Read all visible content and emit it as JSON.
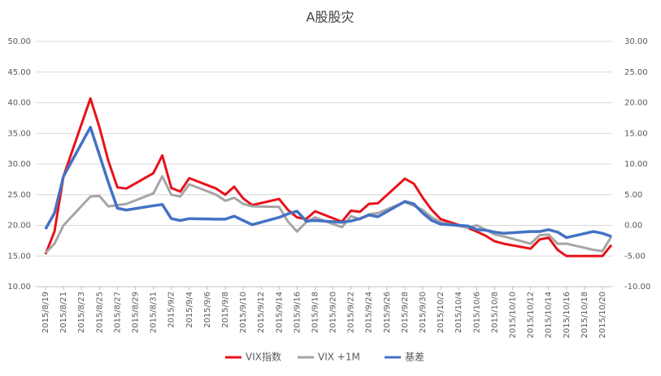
{
  "chart_data": {
    "type": "line",
    "title": "A股股灾",
    "x": [
      "2015/8/19",
      "2015/8/20",
      "2015/8/21",
      "2015/8/24",
      "2015/8/25",
      "2015/8/26",
      "2015/8/27",
      "2015/8/28",
      "2015/8/31",
      "2015/9/1",
      "2015/9/2",
      "2015/9/3",
      "2015/9/4",
      "2015/9/7",
      "2015/9/8",
      "2015/9/9",
      "2015/9/10",
      "2015/9/11",
      "2015/9/14",
      "2015/9/15",
      "2015/9/16",
      "2015/9/17",
      "2015/9/18",
      "2015/9/21",
      "2015/9/22",
      "2015/9/23",
      "2015/9/24",
      "2015/9/25",
      "2015/9/28",
      "2015/9/29",
      "2015/9/30",
      "2015/10/1",
      "2015/10/2",
      "2015/10/5",
      "2015/10/6",
      "2015/10/7",
      "2015/10/8",
      "2015/10/9",
      "2015/10/12",
      "2015/10/13",
      "2015/10/14",
      "2015/10/15",
      "2015/10/16",
      "2015/10/19",
      "2015/10/20",
      "2015/10/21"
    ],
    "xticks": [
      "2015/8/19",
      "2015/8/21",
      "2015/8/23",
      "2015/8/25",
      "2015/8/27",
      "2015/8/29",
      "2015/8/31",
      "2015/9/2",
      "2015/9/4",
      "2015/9/6",
      "2015/9/8",
      "2015/9/10",
      "2015/9/12",
      "2015/9/14",
      "2015/9/16",
      "2015/9/18",
      "2015/9/20",
      "2015/9/22",
      "2015/9/24",
      "2015/9/26",
      "2015/9/28",
      "2015/9/30",
      "2015/10/2",
      "2015/10/4",
      "2015/10/6",
      "2015/10/8",
      "2015/10/10",
      "2015/10/12",
      "2015/10/14",
      "2015/10/16",
      "2015/10/18",
      "2015/10/20"
    ],
    "series": [
      {
        "name": "VIX指数",
        "color": "#e8111a",
        "values": [
          15.3,
          19,
          28,
          40.7,
          36,
          30.5,
          26.2,
          26,
          28.5,
          31.4,
          26.1,
          25.5,
          27.7,
          26.0,
          25.0,
          26.3,
          24.4,
          23.3,
          24.3,
          22.5,
          21.3,
          21.0,
          22.3,
          20.6,
          22.4,
          22.2,
          23.5,
          23.6,
          27.6,
          26.8,
          24.5,
          22.5,
          21.0,
          19.6,
          19.0,
          18.3,
          17.4,
          17.0,
          16.2,
          17.7,
          18.0,
          16.0,
          15.0,
          15.0,
          15.0,
          16.8
        ]
      },
      {
        "name": "VIX +1M",
        "color": "#a5a5a5",
        "values": [
          15.5,
          17,
          20,
          24.7,
          24.8,
          23.1,
          23.3,
          23.5,
          25.2,
          28.0,
          25.0,
          24.7,
          26.7,
          25.0,
          24.0,
          24.5,
          23.5,
          23.1,
          23.0,
          20.6,
          19.0,
          20.5,
          21.3,
          19.7,
          21.5,
          21.0,
          21.8,
          22.0,
          23.8,
          23.2,
          22.5,
          21.3,
          20.5,
          19.6,
          20.0,
          19.3,
          18.5,
          18.2,
          17.0,
          18.4,
          18.5,
          17.0,
          17.0,
          16.0,
          15.8,
          18.2
        ]
      },
      {
        "name": "基差",
        "color": "#4472c4",
        "axis": "y2",
        "values": [
          -0.6,
          2,
          8,
          16,
          11.5,
          7,
          2.8,
          2.5,
          3.2,
          3.4,
          1.1,
          0.8,
          1.1,
          1.0,
          1.0,
          1.5,
          0.8,
          0.1,
          1.3,
          1.9,
          2.3,
          0.7,
          0.8,
          0.5,
          0.7,
          1.1,
          1.7,
          1.4,
          3.9,
          3.5,
          2.0,
          0.8,
          0.2,
          -0.1,
          -0.7,
          -0.8,
          -1.1,
          -1.3,
          -1.0,
          -1.0,
          -0.7,
          -1.1,
          -2.0,
          -1.0,
          -1.3,
          -1.8
        ]
      }
    ],
    "ylim": [
      10,
      50
    ],
    "yticks": [
      {
        "value": 10,
        "label": "10.00"
      },
      {
        "value": 15,
        "label": "15.00"
      },
      {
        "value": 20,
        "label": "20.00"
      },
      {
        "value": 25,
        "label": "25.00"
      },
      {
        "value": 30,
        "label": "30.00"
      },
      {
        "value": 35,
        "label": "35.00"
      },
      {
        "value": 40,
        "label": "40.00"
      },
      {
        "value": 45,
        "label": "45.00"
      },
      {
        "value": 50,
        "label": "50.00"
      }
    ],
    "y2lim": [
      -10,
      30
    ],
    "y2ticks": [
      {
        "value": -10,
        "label": "-10.00"
      },
      {
        "value": -5,
        "label": "-5.00"
      },
      {
        "value": 0,
        "label": "0.00"
      },
      {
        "value": 5,
        "label": "5.00"
      },
      {
        "value": 10,
        "label": "10.00"
      },
      {
        "value": 15,
        "label": "15.00"
      },
      {
        "value": 20,
        "label": "20.00"
      },
      {
        "value": 25,
        "label": "25.00"
      },
      {
        "value": 30,
        "label": "30.00"
      }
    ],
    "grid": true,
    "legend": "bottom"
  }
}
